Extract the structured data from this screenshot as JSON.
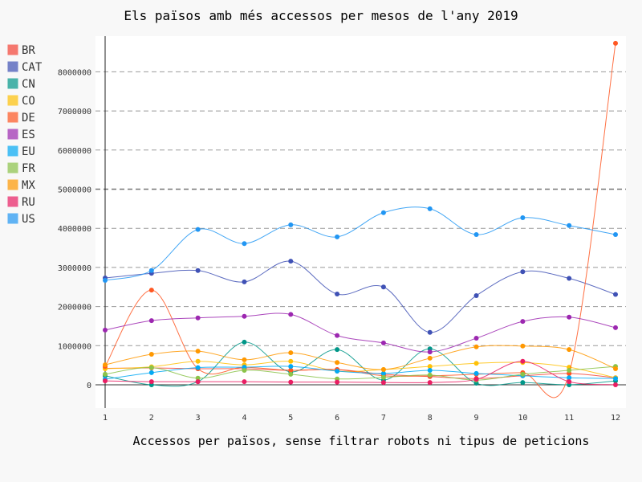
{
  "chart_data": {
    "type": "line",
    "title": "Els països amb més accessos per mesos de l'any 2019",
    "xlabel": "Accessos per països, sense filtrar robots ni tipus de peticions",
    "ylabel": "",
    "x": [
      1,
      2,
      3,
      4,
      5,
      6,
      7,
      8,
      9,
      10,
      11,
      12
    ],
    "x_tick_labels": [
      "1",
      "2",
      "3",
      "4",
      "5",
      "6",
      "7",
      "8",
      "9",
      "10",
      "11",
      "12"
    ],
    "y_tick_labels": [
      "0",
      "1000000",
      "2000000",
      "3000000",
      "4000000",
      "5000000",
      "6000000",
      "7000000",
      "8000000"
    ],
    "y_ticks": [
      0,
      1000000,
      2000000,
      3000000,
      4000000,
      5000000,
      6000000,
      7000000,
      8000000
    ],
    "ylim": [
      -600000,
      8900000
    ],
    "grid": true,
    "legend_position": "left",
    "interpolation": "smooth",
    "series": [
      {
        "name": "BR",
        "color": "#F44336",
        "values": [
          420000,
          430000,
          410000,
          410000,
          370000,
          390000,
          270000,
          210000,
          160000,
          230000,
          290000,
          180000
        ]
      },
      {
        "name": "CAT",
        "color": "#3F51B5",
        "values": [
          2730000,
          2850000,
          2920000,
          2630000,
          3160000,
          2320000,
          2500000,
          1340000,
          2280000,
          2890000,
          2720000,
          2310000
        ]
      },
      {
        "name": "CN",
        "color": "#009688",
        "values": [
          230000,
          0,
          80000,
          1090000,
          330000,
          900000,
          120000,
          920000,
          40000,
          60000,
          0,
          100000
        ]
      },
      {
        "name": "CO",
        "color": "#FFC107",
        "values": [
          410000,
          460000,
          600000,
          510000,
          600000,
          350000,
          390000,
          470000,
          550000,
          570000,
          450000,
          180000
        ]
      },
      {
        "name": "DE",
        "color": "#FF5722",
        "values": [
          470000,
          2420000,
          410000,
          450000,
          370000,
          390000,
          230000,
          230000,
          270000,
          310000,
          290000,
          8730000
        ]
      },
      {
        "name": "ES",
        "color": "#9C27B0",
        "values": [
          1400000,
          1640000,
          1710000,
          1750000,
          1800000,
          1260000,
          1070000,
          840000,
          1190000,
          1620000,
          1730000,
          1460000
        ]
      },
      {
        "name": "EU",
        "color": "#03A9F4",
        "values": [
          140000,
          310000,
          440000,
          450000,
          470000,
          350000,
          290000,
          370000,
          290000,
          230000,
          180000,
          160000
        ]
      },
      {
        "name": "FR",
        "color": "#8BC34A",
        "values": [
          270000,
          440000,
          170000,
          370000,
          270000,
          150000,
          190000,
          250000,
          120000,
          270000,
          370000,
          470000
        ]
      },
      {
        "name": "MX",
        "color": "#FF9800",
        "values": [
          510000,
          780000,
          860000,
          640000,
          820000,
          570000,
          390000,
          680000,
          970000,
          990000,
          900000,
          410000
        ]
      },
      {
        "name": "RU",
        "color": "#E91E63",
        "values": [
          100000,
          80000,
          80000,
          80000,
          70000,
          70000,
          60000,
          60000,
          140000,
          600000,
          80000,
          0
        ]
      },
      {
        "name": "US",
        "color": "#2196F3",
        "values": [
          2670000,
          2920000,
          3970000,
          3610000,
          4090000,
          3780000,
          4400000,
          4500000,
          3840000,
          4270000,
          4070000,
          3840000
        ]
      }
    ]
  }
}
